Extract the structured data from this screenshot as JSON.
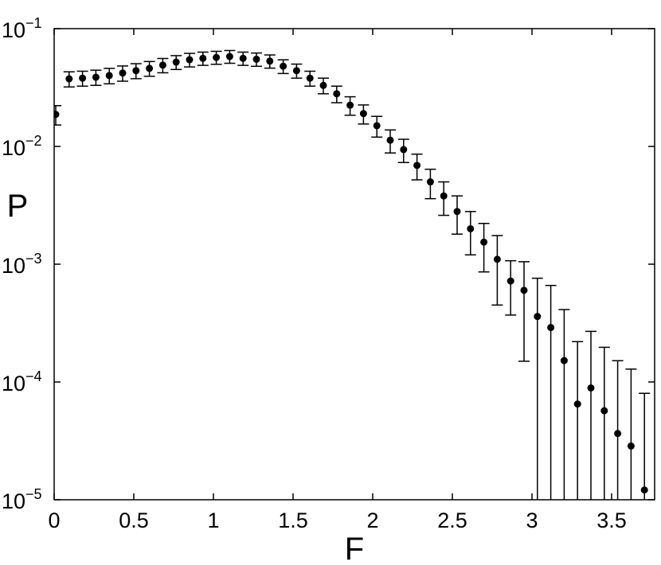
{
  "chart_data": {
    "type": "errorbar-scatter",
    "x_label": "F",
    "y_label": "P",
    "xlim": [
      0,
      3.77
    ],
    "xticks": [
      0,
      0.5,
      1,
      1.5,
      2,
      2.5,
      3,
      3.5
    ],
    "ylim": [
      1e-05,
      0.1
    ],
    "log_y": true,
    "yticks": [
      {
        "value": 0.1,
        "label": "10",
        "exponent": "−1"
      },
      {
        "value": 0.01,
        "label": "10",
        "exponent": "−2"
      },
      {
        "value": 0.001,
        "label": "10",
        "exponent": "−3"
      },
      {
        "value": 0.0001,
        "label": "10",
        "exponent": "−4"
      },
      {
        "value": 1e-05,
        "label": "10",
        "exponent": "−5"
      }
    ],
    "color": "#000000",
    "x": [
      0.01,
      0.094,
      0.178,
      0.262,
      0.346,
      0.43,
      0.514,
      0.598,
      0.682,
      0.766,
      0.85,
      0.934,
      1.018,
      1.102,
      1.186,
      1.27,
      1.354,
      1.438,
      1.522,
      1.606,
      1.69,
      1.774,
      1.858,
      1.942,
      2.026,
      2.11,
      2.194,
      2.278,
      2.362,
      2.446,
      2.53,
      2.614,
      2.698,
      2.782,
      2.866,
      2.95,
      3.034,
      3.118,
      3.202,
      3.286,
      3.37,
      3.454,
      3.538,
      3.622,
      3.706
    ],
    "values": [
      0.0187,
      0.0375,
      0.038,
      0.0387,
      0.04,
      0.042,
      0.044,
      0.046,
      0.049,
      0.052,
      0.0545,
      0.056,
      0.057,
      0.058,
      0.056,
      0.055,
      0.053,
      0.048,
      0.044,
      0.038,
      0.033,
      0.028,
      0.0224,
      0.019,
      0.015,
      0.0113,
      0.0094,
      0.0069,
      0.005,
      0.0038,
      0.0028,
      0.002,
      0.00154,
      0.0011,
      0.00072,
      0.0006,
      0.00036,
      0.00029,
      0.000152,
      6.5e-05,
      8.9e-05,
      5.7e-05,
      3.65e-05,
      2.86e-05,
      1.21e-05
    ],
    "errors": [
      0.0035,
      0.0055,
      0.0055,
      0.0057,
      0.006,
      0.0062,
      0.0064,
      0.0066,
      0.0068,
      0.007,
      0.0072,
      0.0072,
      0.0072,
      0.0072,
      0.0072,
      0.0071,
      0.0068,
      0.0064,
      0.006,
      0.0055,
      0.005,
      0.0045,
      0.004,
      0.0035,
      0.003,
      0.0025,
      0.0021,
      0.0017,
      0.0014,
      0.0012,
      0.001,
      0.0008,
      0.00068,
      0.00065,
      0.00035,
      0.00045,
      0.0004,
      0.00037,
      0.00026,
      0.000155,
      0.00018,
      0.00014,
      0.000115,
      0.0001,
      6.8e-05
    ]
  }
}
